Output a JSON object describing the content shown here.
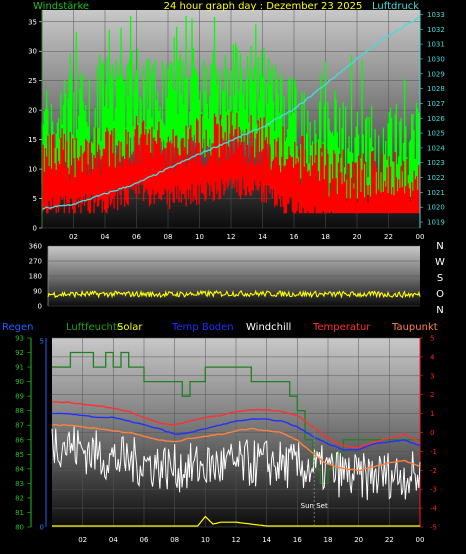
{
  "chart_data": [
    {
      "type": "line",
      "title": "24 hour graph day : Dezember 23 2025",
      "left_label": "Windstärke",
      "right_label": "Luftdruck",
      "x_ticks": [
        "02",
        "04",
        "06",
        "08",
        "10",
        "12",
        "14",
        "16",
        "18",
        "20",
        "22",
        "00"
      ],
      "y_left_ticks": [
        "0",
        "5",
        "10",
        "15",
        "20",
        "25",
        "30",
        "35"
      ],
      "y_left_range": [
        0,
        37
      ],
      "y_right_ticks": [
        "1019",
        "1020",
        "1021",
        "1022",
        "1023",
        "1024",
        "1025",
        "1026",
        "1027",
        "1028",
        "1029",
        "1030",
        "1031",
        "1032",
        "1033"
      ],
      "y_right_range": [
        1018.6,
        1033.3
      ],
      "series": [
        {
          "name": "Windstärke",
          "color": "#00ff00",
          "hours": [
            0,
            2,
            4,
            6,
            8,
            10,
            12,
            14,
            16,
            18,
            20,
            22,
            24
          ],
          "values": [
            17,
            20,
            22,
            24,
            23,
            24,
            25,
            24,
            19,
            16,
            14,
            14,
            15
          ]
        },
        {
          "name": "Windstärke",
          "color": "#ff0000",
          "hours": [
            0,
            2,
            4,
            6,
            8,
            10,
            12,
            14,
            16,
            18,
            20,
            22,
            24
          ],
          "values": [
            10,
            11,
            11,
            13,
            12,
            13,
            14,
            13,
            10,
            8,
            7,
            7,
            7
          ]
        },
        {
          "name": "Luftdruck",
          "color": "#44dddd",
          "hours": [
            0,
            2,
            4,
            6,
            8,
            10,
            12,
            14,
            16,
            18,
            20,
            22,
            24
          ],
          "values": [
            1019.9,
            1020.2,
            1020.9,
            1021.6,
            1022.6,
            1023.6,
            1024.5,
            1025.4,
            1026.6,
            1028.3,
            1030.0,
            1031.6,
            1032.8
          ]
        }
      ]
    },
    {
      "type": "line",
      "title": "",
      "x_ticks": [],
      "y_ticks": [
        "0",
        "90",
        "180",
        "270",
        "360"
      ],
      "y_range": [
        0,
        360
      ],
      "direction_labels": [
        "N",
        "W",
        "S",
        "O",
        "N"
      ],
      "series": [
        {
          "name": "Windrichtung",
          "color": "#ffff00",
          "hours": [
            0,
            4,
            8,
            12,
            16,
            20,
            24
          ],
          "values": [
            70,
            72,
            70,
            75,
            72,
            70,
            68
          ]
        }
      ]
    },
    {
      "type": "line",
      "title": "",
      "legend": [
        {
          "name": "Regen",
          "color": "#2060ff"
        },
        {
          "name": "Luftfeuchte",
          "color": "#20a020"
        },
        {
          "name": "Solar",
          "color": "#ffff00"
        },
        {
          "name": "Temp Boden",
          "color": "#2030ff"
        },
        {
          "name": "Windchill",
          "color": "#ffffff"
        },
        {
          "name": "Temperatur",
          "color": "#ff3030"
        },
        {
          "name": "Taupunkt",
          "color": "#ff8040"
        }
      ],
      "x_ticks": [
        "02",
        "04",
        "06",
        "08",
        "10",
        "12",
        "14",
        "16",
        "18",
        "20",
        "22",
        "00"
      ],
      "y_left_ticks": [
        "80",
        "81",
        "82",
        "83",
        "84",
        "85",
        "86",
        "87",
        "88",
        "89",
        "90",
        "91",
        "92",
        "93"
      ],
      "y_left_range": [
        80,
        93
      ],
      "y_rain_ticks": [
        "0",
        "5"
      ],
      "y_right_ticks": [
        "-5",
        "-4",
        "-3",
        "-2",
        "-1",
        "0",
        "1",
        "2",
        "3",
        "4",
        "5"
      ],
      "y_right_range": [
        -5,
        5
      ],
      "annotation": "Sun Set",
      "series": [
        {
          "name": "Luftfeuchte",
          "color": "#208020",
          "hours": [
            0,
            1,
            1.2,
            2.5,
            2.7,
            3.5,
            4,
            4.5,
            5,
            5.5,
            6,
            6.5,
            7,
            8,
            8.5,
            9,
            10,
            11,
            12,
            13,
            14,
            15,
            15.5,
            16,
            16.5,
            17,
            17.5,
            18,
            18.5,
            19,
            20,
            21,
            22,
            23,
            24
          ],
          "values": [
            91,
            91,
            92,
            92,
            91,
            92,
            91,
            92,
            91,
            91,
            90,
            90,
            90,
            90,
            89,
            90,
            91,
            91,
            91,
            90,
            90,
            90,
            89,
            88,
            86,
            84,
            83,
            84,
            85,
            86,
            86,
            86,
            86,
            86,
            86
          ]
        },
        {
          "name": "Temperatur",
          "color": "#ff3030",
          "hours": [
            0,
            1,
            2,
            3,
            4,
            5,
            6,
            7,
            8,
            9,
            10,
            11,
            12,
            13,
            14,
            15,
            16,
            17,
            18,
            19,
            20,
            21,
            22,
            23,
            24
          ],
          "values": [
            1.6,
            1.6,
            1.5,
            1.4,
            1.3,
            1.1,
            0.8,
            0.5,
            0.4,
            0.6,
            0.8,
            0.9,
            1.1,
            1.2,
            1.2,
            1.1,
            0.9,
            0.3,
            -0.3,
            -0.7,
            -0.8,
            -0.5,
            -0.3,
            -0.1,
            -0.5
          ]
        },
        {
          "name": "Temp Boden",
          "color": "#2030ff",
          "hours": [
            0,
            1,
            2,
            3,
            4,
            5,
            6,
            7,
            8,
            9,
            10,
            11,
            12,
            13,
            14,
            15,
            16,
            17,
            18,
            19,
            20,
            21,
            22,
            23,
            24
          ],
          "values": [
            1.0,
            1.0,
            0.9,
            0.8,
            0.8,
            0.6,
            0.4,
            0.2,
            -0.1,
            0.0,
            0.2,
            0.4,
            0.6,
            0.7,
            0.7,
            0.6,
            0.3,
            -0.2,
            -0.6,
            -0.9,
            -0.9,
            -0.6,
            -0.5,
            -0.4,
            -0.7
          ]
        },
        {
          "name": "Taupunkt",
          "color": "#ff8040",
          "hours": [
            0,
            1,
            2,
            3,
            4,
            5,
            6,
            7,
            8,
            9,
            10,
            11,
            12,
            13,
            14,
            15,
            16,
            17,
            18,
            19,
            20,
            21,
            22,
            23,
            24
          ],
          "values": [
            0.4,
            0.4,
            0.3,
            0.2,
            0.1,
            0.0,
            -0.2,
            -0.4,
            -0.5,
            -0.3,
            -0.2,
            -0.1,
            0.1,
            0.2,
            0.1,
            0.0,
            -0.4,
            -1.1,
            -1.7,
            -1.9,
            -2.0,
            -1.8,
            -1.6,
            -1.5,
            -1.8
          ]
        },
        {
          "name": "Windchill",
          "color": "#ffffff",
          "hours": [
            0,
            2,
            4,
            6,
            8,
            10,
            12,
            14,
            16,
            18,
            20,
            22,
            24
          ],
          "values": [
            -0.4,
            -0.9,
            -1.4,
            -1.6,
            -1.9,
            -1.8,
            -1.7,
            -1.6,
            -1.8,
            -2.0,
            -2.4,
            -2.2,
            -2.3
          ]
        },
        {
          "name": "Solar",
          "color": "#ffff00",
          "hours": [
            0,
            9.5,
            10,
            10.5,
            11,
            12,
            13,
            14,
            14.5,
            24
          ],
          "values": [
            -5,
            -5,
            -4.5,
            -4.9,
            -4.8,
            -4.8,
            -4.9,
            -5,
            -5,
            -5
          ]
        }
      ]
    }
  ]
}
